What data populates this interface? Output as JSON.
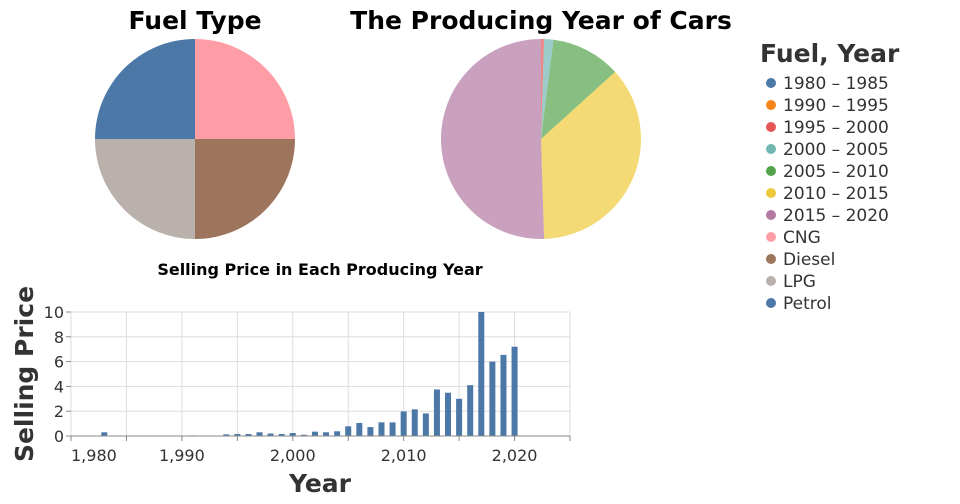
{
  "chart_data": [
    {
      "type": "pie",
      "title": "Fuel Type",
      "slices": [
        {
          "label": "CNG",
          "value": 25,
          "color": "#ff9da6"
        },
        {
          "label": "Diesel",
          "value": 25,
          "color": "#9d755d"
        },
        {
          "label": "LPG",
          "value": 25,
          "color": "#bab0ac"
        },
        {
          "label": "Petrol",
          "value": 25,
          "color": "#4c78a8"
        }
      ]
    },
    {
      "type": "pie",
      "title": "The Producing Year of Cars",
      "slices": [
        {
          "label": "1995 – 2000",
          "value": 0.5,
          "color": "#e45756"
        },
        {
          "label": "2000 – 2005",
          "value": 1.5,
          "color": "#72b7b2"
        },
        {
          "label": "2005 – 2010",
          "value": 11.3,
          "color": "#54a24b"
        },
        {
          "label": "2010 – 2015",
          "value": 36.2,
          "color": "#eeca3b"
        },
        {
          "label": "2015 – 2020",
          "value": 50.5,
          "color": "#b279a2"
        }
      ],
      "opacity": 0.7
    },
    {
      "type": "bar",
      "title": "Selling Price in Each Producing Year",
      "xlabel": "Year",
      "ylabel": "Selling Price",
      "xlim": [
        1980,
        2025
      ],
      "ylim": [
        0,
        10
      ],
      "xticks": [
        "1,980",
        "1,990",
        "2,000",
        "2,010",
        "2,020"
      ],
      "yticks": [
        "0",
        "2",
        "4",
        "6",
        "8",
        "10"
      ],
      "grid": true,
      "color": "#4c78a8",
      "x": [
        1983,
        1991,
        1994,
        1995,
        1996,
        1997,
        1998,
        1999,
        2000,
        2001,
        2002,
        2003,
        2004,
        2005,
        2006,
        2007,
        2008,
        2009,
        2010,
        2011,
        2012,
        2013,
        2014,
        2015,
        2016,
        2017,
        2018,
        2019,
        2020
      ],
      "values": [
        0.3,
        0.05,
        0.13,
        0.16,
        0.16,
        0.3,
        0.2,
        0.16,
        0.24,
        0.1,
        0.35,
        0.3,
        0.38,
        0.78,
        1.05,
        0.72,
        1.1,
        1.1,
        1.98,
        2.15,
        1.82,
        3.75,
        3.49,
        3.0,
        4.1,
        10,
        6.0,
        6.54,
        7.2
      ]
    }
  ],
  "legend": {
    "title": "Fuel, Year",
    "placement": "right",
    "items": [
      {
        "label": "1980 – 1985",
        "color": "#4c78a8"
      },
      {
        "label": "1990 – 1995",
        "color": "#f58518"
      },
      {
        "label": "1995 – 2000",
        "color": "#e45756"
      },
      {
        "label": "2000 – 2005",
        "color": "#72b7b2"
      },
      {
        "label": "2005 – 2010",
        "color": "#54a24b"
      },
      {
        "label": "2010 – 2015",
        "color": "#eeca3b"
      },
      {
        "label": "2015 – 2020",
        "color": "#b279a2"
      },
      {
        "label": "CNG",
        "color": "#ff9da6"
      },
      {
        "label": "Diesel",
        "color": "#9d755d"
      },
      {
        "label": "LPG",
        "color": "#bab0ac"
      },
      {
        "label": "Petrol",
        "color": "#4c78a8"
      }
    ]
  }
}
